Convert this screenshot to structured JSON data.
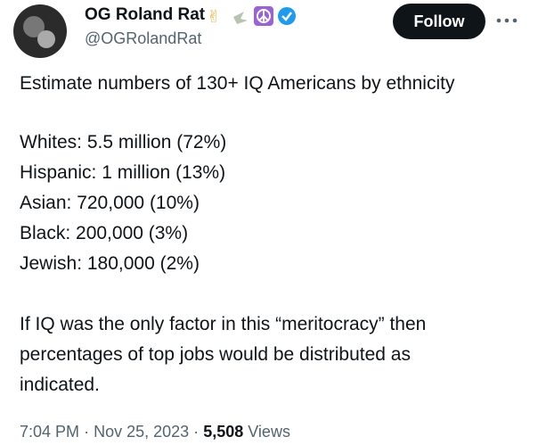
{
  "author": {
    "name": "OG Roland Rat",
    "handle": "@OGRolandRat",
    "follow_button": "Follow"
  },
  "tweet": {
    "lines": [
      "Estimate numbers of 130+ IQ Americans by ethnicity",
      "Whites: 5.5 million (72%)",
      "Hispanic: 1 million (13%)",
      "Asian: 720,000 (10%)",
      "Black: 200,000 (3%)",
      "Jewish: 180,000 (2%)",
      "If IQ was the only factor in this “meritocracy” then",
      "percentages of top jobs would be distributed as",
      "indicated."
    ]
  },
  "footer": {
    "time": "7:04 PM",
    "separator": "·",
    "date": "Nov 25, 2023",
    "views_count": "5,508",
    "views_label": "Views"
  }
}
